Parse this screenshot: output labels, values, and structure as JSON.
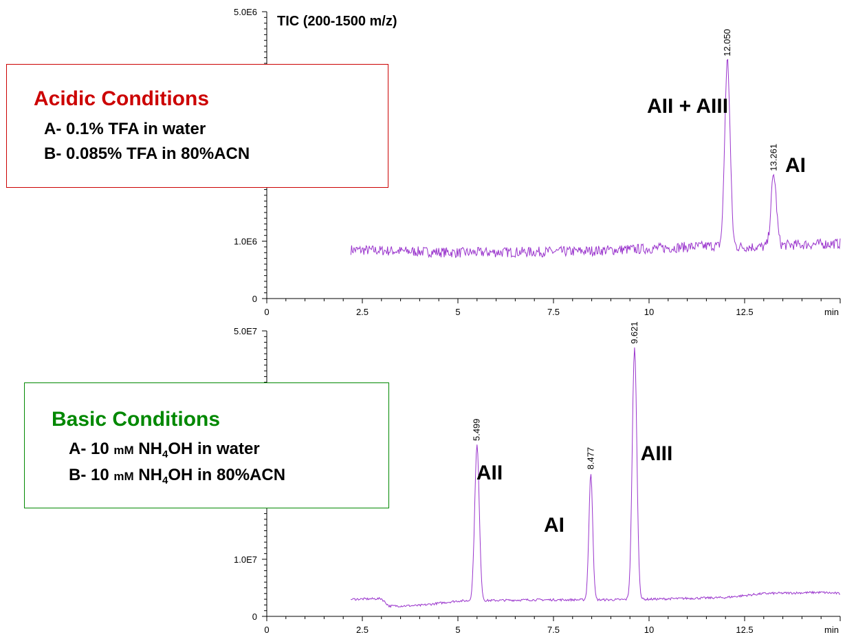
{
  "chart_data": [
    {
      "type": "line",
      "title": "TIC (200-1500 m/z)",
      "xunit": "min",
      "xlim": [
        0,
        15
      ],
      "xticks": [
        0,
        2.5,
        5,
        7.5,
        10,
        12.5
      ],
      "xtick_labels": [
        "0",
        "2.5",
        "5",
        "7.5",
        "10",
        "12.5"
      ],
      "ylim": [
        0,
        5000000
      ],
      "yticks": [
        0,
        1000000,
        5000000
      ],
      "ytick_labels": [
        "0",
        "1.0E6",
        "5.0E6"
      ],
      "line_color": "#9933cc",
      "baseline": [
        [
          2.2,
          850000
        ],
        [
          5,
          800000
        ],
        [
          8,
          820000
        ],
        [
          10,
          870000
        ],
        [
          11.7,
          920000
        ],
        [
          11.9,
          900000
        ],
        [
          12.3,
          900000
        ],
        [
          13.0,
          900000
        ],
        [
          13.5,
          930000
        ],
        [
          15,
          960000
        ]
      ],
      "noise": 90000,
      "peaks": [
        {
          "rt": 12.05,
          "rt_label": "12.050",
          "height": 4150000,
          "width": 0.07,
          "name": "AII + AIII"
        },
        {
          "rt": 13.261,
          "rt_label": "13.261",
          "height": 2150000,
          "width": 0.07,
          "name": "AI"
        }
      ]
    },
    {
      "type": "line",
      "title": "",
      "xunit": "min",
      "xlim": [
        0,
        15
      ],
      "xticks": [
        0,
        2.5,
        5,
        7.5,
        10,
        12.5
      ],
      "xtick_labels": [
        "0",
        "2.5",
        "5",
        "7.5",
        "10",
        "12.5"
      ],
      "ylim": [
        0,
        50000000
      ],
      "yticks": [
        0,
        10000000,
        50000000
      ],
      "ytick_labels": [
        "0",
        "1.0E7",
        "5.0E7"
      ],
      "line_color": "#9933cc",
      "baseline": [
        [
          2.2,
          3000000
        ],
        [
          3.0,
          3100000
        ],
        [
          3.2,
          1800000
        ],
        [
          4.0,
          1900000
        ],
        [
          5.0,
          2700000
        ],
        [
          7.0,
          2900000
        ],
        [
          8.0,
          2900000
        ],
        [
          9.0,
          2900000
        ],
        [
          10.0,
          3000000
        ],
        [
          12.0,
          3300000
        ],
        [
          13.0,
          4000000
        ],
        [
          14.5,
          4200000
        ],
        [
          15,
          4000000
        ]
      ],
      "noise": 200000,
      "peaks": [
        {
          "rt": 5.499,
          "rt_label": "5.499",
          "height": 30000000,
          "width": 0.06,
          "name": "AII"
        },
        {
          "rt": 8.477,
          "rt_label": "8.477",
          "height": 25000000,
          "width": 0.05,
          "name": "AI"
        },
        {
          "rt": 9.621,
          "rt_label": "9.621",
          "height": 47000000,
          "width": 0.06,
          "name": "AIII"
        }
      ]
    }
  ],
  "acidic_box": {
    "title": "Acidic Conditions",
    "title_color": "#cc0000",
    "border_color": "#cc0000",
    "line_a": "A- 0.1% TFA in water",
    "line_b": "B- 0.085% TFA in 80%ACN"
  },
  "basic_box": {
    "title": "Basic Conditions",
    "title_color": "#008800",
    "border_color": "#008800",
    "line_a_prefix": "A- 10 ",
    "line_a_unit": "mM",
    "line_a_nh": " NH",
    "line_a_sub": "4",
    "line_a_rest": "OH in water",
    "line_b_prefix": "B- 10 ",
    "line_b_unit": "mM",
    "line_b_nh": " NH",
    "line_b_sub": "4",
    "line_b_rest": "OH in 80%ACN"
  }
}
